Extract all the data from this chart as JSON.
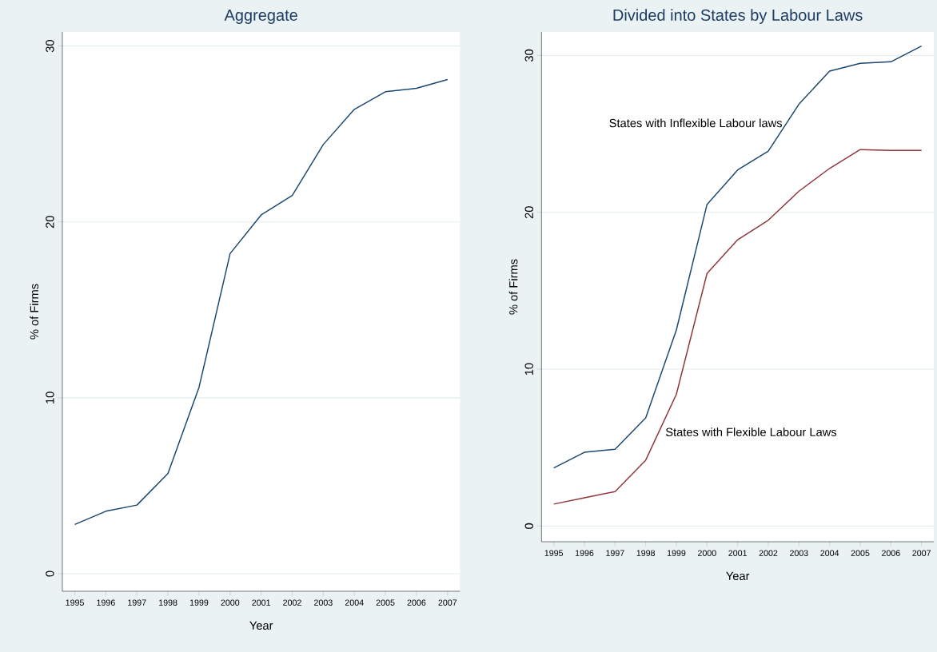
{
  "chart_data": [
    {
      "type": "line",
      "title": "Aggregate",
      "xlabel": "Year",
      "ylabel": "% of Firms",
      "categories": [
        "1995",
        "1996",
        "1997",
        "1998",
        "1999",
        "2000",
        "2001",
        "2002",
        "2003",
        "2004",
        "2005",
        "2006",
        "2007"
      ],
      "series": [
        {
          "color": "#1a476f",
          "values": [
            2.8,
            3.55,
            3.9,
            5.7,
            10.6,
            18.2,
            20.4,
            21.5,
            24.4,
            26.4,
            27.4,
            27.6,
            28.1
          ]
        }
      ],
      "ylim": [
        -1,
        30.8
      ],
      "yticks": [
        0,
        10,
        20,
        30
      ],
      "grid": "y"
    },
    {
      "type": "line",
      "title": "Divided into States by Labour Laws",
      "xlabel": "Year",
      "ylabel": "% of Firms",
      "categories": [
        "1995",
        "1996",
        "1997",
        "1998",
        "1999",
        "2000",
        "2001",
        "2002",
        "2003",
        "2004",
        "2005",
        "2006",
        "2007"
      ],
      "series": [
        {
          "name": "States with Inflexible Labour laws",
          "color": "#1a476f",
          "values": [
            3.7,
            4.7,
            4.9,
            6.9,
            12.5,
            20.5,
            22.7,
            23.9,
            26.9,
            29.0,
            29.5,
            29.6,
            30.6
          ]
        },
        {
          "name": "States with Flexible Labour Laws",
          "color": "#90353b",
          "values": [
            1.4,
            1.8,
            2.2,
            4.2,
            8.4,
            16.1,
            18.25,
            19.5,
            21.35,
            22.8,
            24.0,
            23.95,
            23.95
          ]
        }
      ],
      "ylim": [
        -1,
        31.5
      ],
      "yticks": [
        0,
        10,
        20,
        30
      ],
      "grid": "y"
    }
  ]
}
